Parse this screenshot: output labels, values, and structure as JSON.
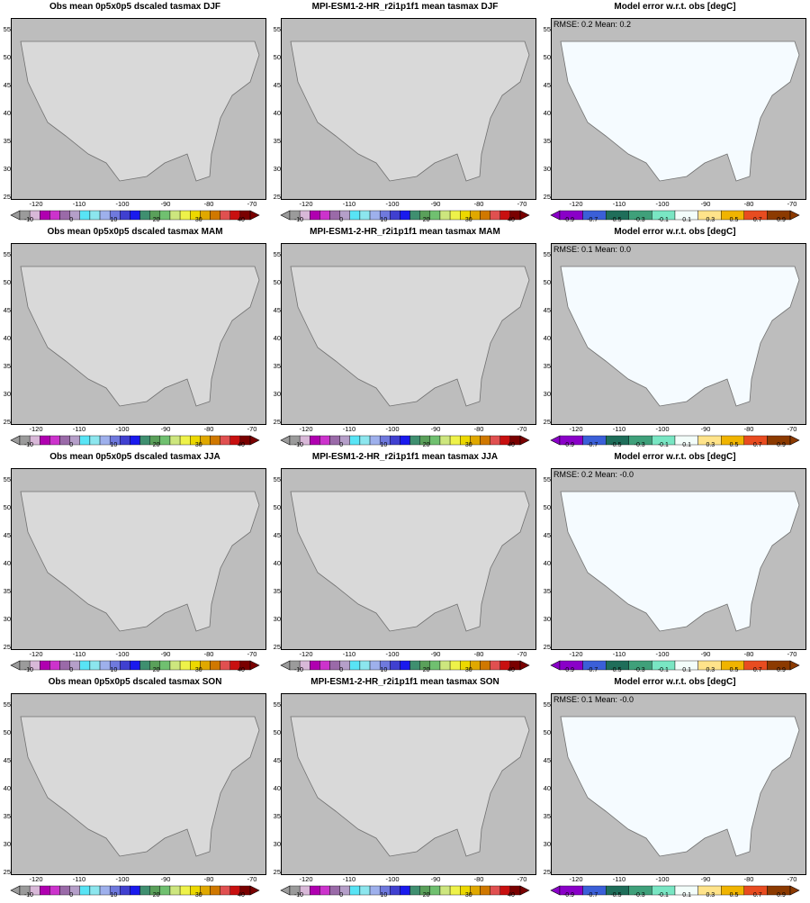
{
  "panels": [
    {
      "row": 0,
      "col": 0,
      "kind": "obs",
      "title": "Obs mean 0p5x0p5 dscaled tasmax DJF",
      "stats": ""
    },
    {
      "row": 0,
      "col": 1,
      "kind": "model",
      "title": "MPI-ESM1-2-HR_r2i1p1f1 mean tasmax DJF",
      "stats": ""
    },
    {
      "row": 0,
      "col": 2,
      "kind": "err",
      "title": "Model error w.r.t. obs [degC]",
      "stats": "RMSE: 0.2  Mean: 0.2"
    },
    {
      "row": 1,
      "col": 0,
      "kind": "obs",
      "title": "Obs mean 0p5x0p5 dscaled tasmax MAM",
      "stats": ""
    },
    {
      "row": 1,
      "col": 1,
      "kind": "model",
      "title": "MPI-ESM1-2-HR_r2i1p1f1 mean tasmax MAM",
      "stats": ""
    },
    {
      "row": 1,
      "col": 2,
      "kind": "err",
      "title": "Model error w.r.t. obs [degC]",
      "stats": "RMSE: 0.1  Mean: 0.0"
    },
    {
      "row": 2,
      "col": 0,
      "kind": "obs",
      "title": "Obs mean 0p5x0p5 dscaled tasmax JJA",
      "stats": ""
    },
    {
      "row": 2,
      "col": 1,
      "kind": "model",
      "title": "MPI-ESM1-2-HR_r2i1p1f1 mean tasmax JJA",
      "stats": ""
    },
    {
      "row": 2,
      "col": 2,
      "kind": "err",
      "title": "Model error w.r.t. obs [degC]",
      "stats": "RMSE: 0.2  Mean: -0.0"
    },
    {
      "row": 3,
      "col": 0,
      "kind": "obs",
      "title": "Obs mean 0p5x0p5 dscaled tasmax SON",
      "stats": ""
    },
    {
      "row": 3,
      "col": 1,
      "kind": "model",
      "title": "MPI-ESM1-2-HR_r2i1p1f1 mean tasmax SON",
      "stats": ""
    },
    {
      "row": 3,
      "col": 2,
      "kind": "err",
      "title": "Model error w.r.t. obs [degC]",
      "stats": "RMSE: 0.1  Mean: -0.0"
    }
  ],
  "axes": {
    "lat_ticks": [
      "55",
      "50",
      "45",
      "40",
      "35",
      "30",
      "25"
    ],
    "lon_ticks": [
      "-120",
      "-110",
      "-100",
      "-90",
      "-80",
      "-70"
    ]
  },
  "colorbars": {
    "temp": {
      "labels": [
        "-10",
        "0",
        "10",
        "20",
        "30",
        "40"
      ],
      "colors": [
        "#9b9b9b",
        "#d8b8d8",
        "#b000b0",
        "#cc33cc",
        "#9a6aa8",
        "#b59fc9",
        "#58e4f5",
        "#8ce6ee",
        "#9eb0ec",
        "#6f79dd",
        "#4040d0",
        "#1a1aee",
        "#3f8f70",
        "#5aa05a",
        "#70c070",
        "#cde67e",
        "#eef24a",
        "#ecd800",
        "#e0a800",
        "#d07800",
        "#e05050",
        "#c81010",
        "#7a0000"
      ]
    },
    "err": {
      "labels": [
        "-0.9",
        "-0.7",
        "-0.5",
        "-0.3",
        "-0.1",
        "0.1",
        "0.3",
        "0.5",
        "0.7",
        "0.9"
      ],
      "colors": [
        "#8a00c8",
        "#3b5fd8",
        "#1f6e5a",
        "#3fa07a",
        "#79e6c3",
        "#f3fdfa",
        "#ffe38a",
        "#f0b400",
        "#e84c20",
        "#8c3a00"
      ]
    }
  }
}
